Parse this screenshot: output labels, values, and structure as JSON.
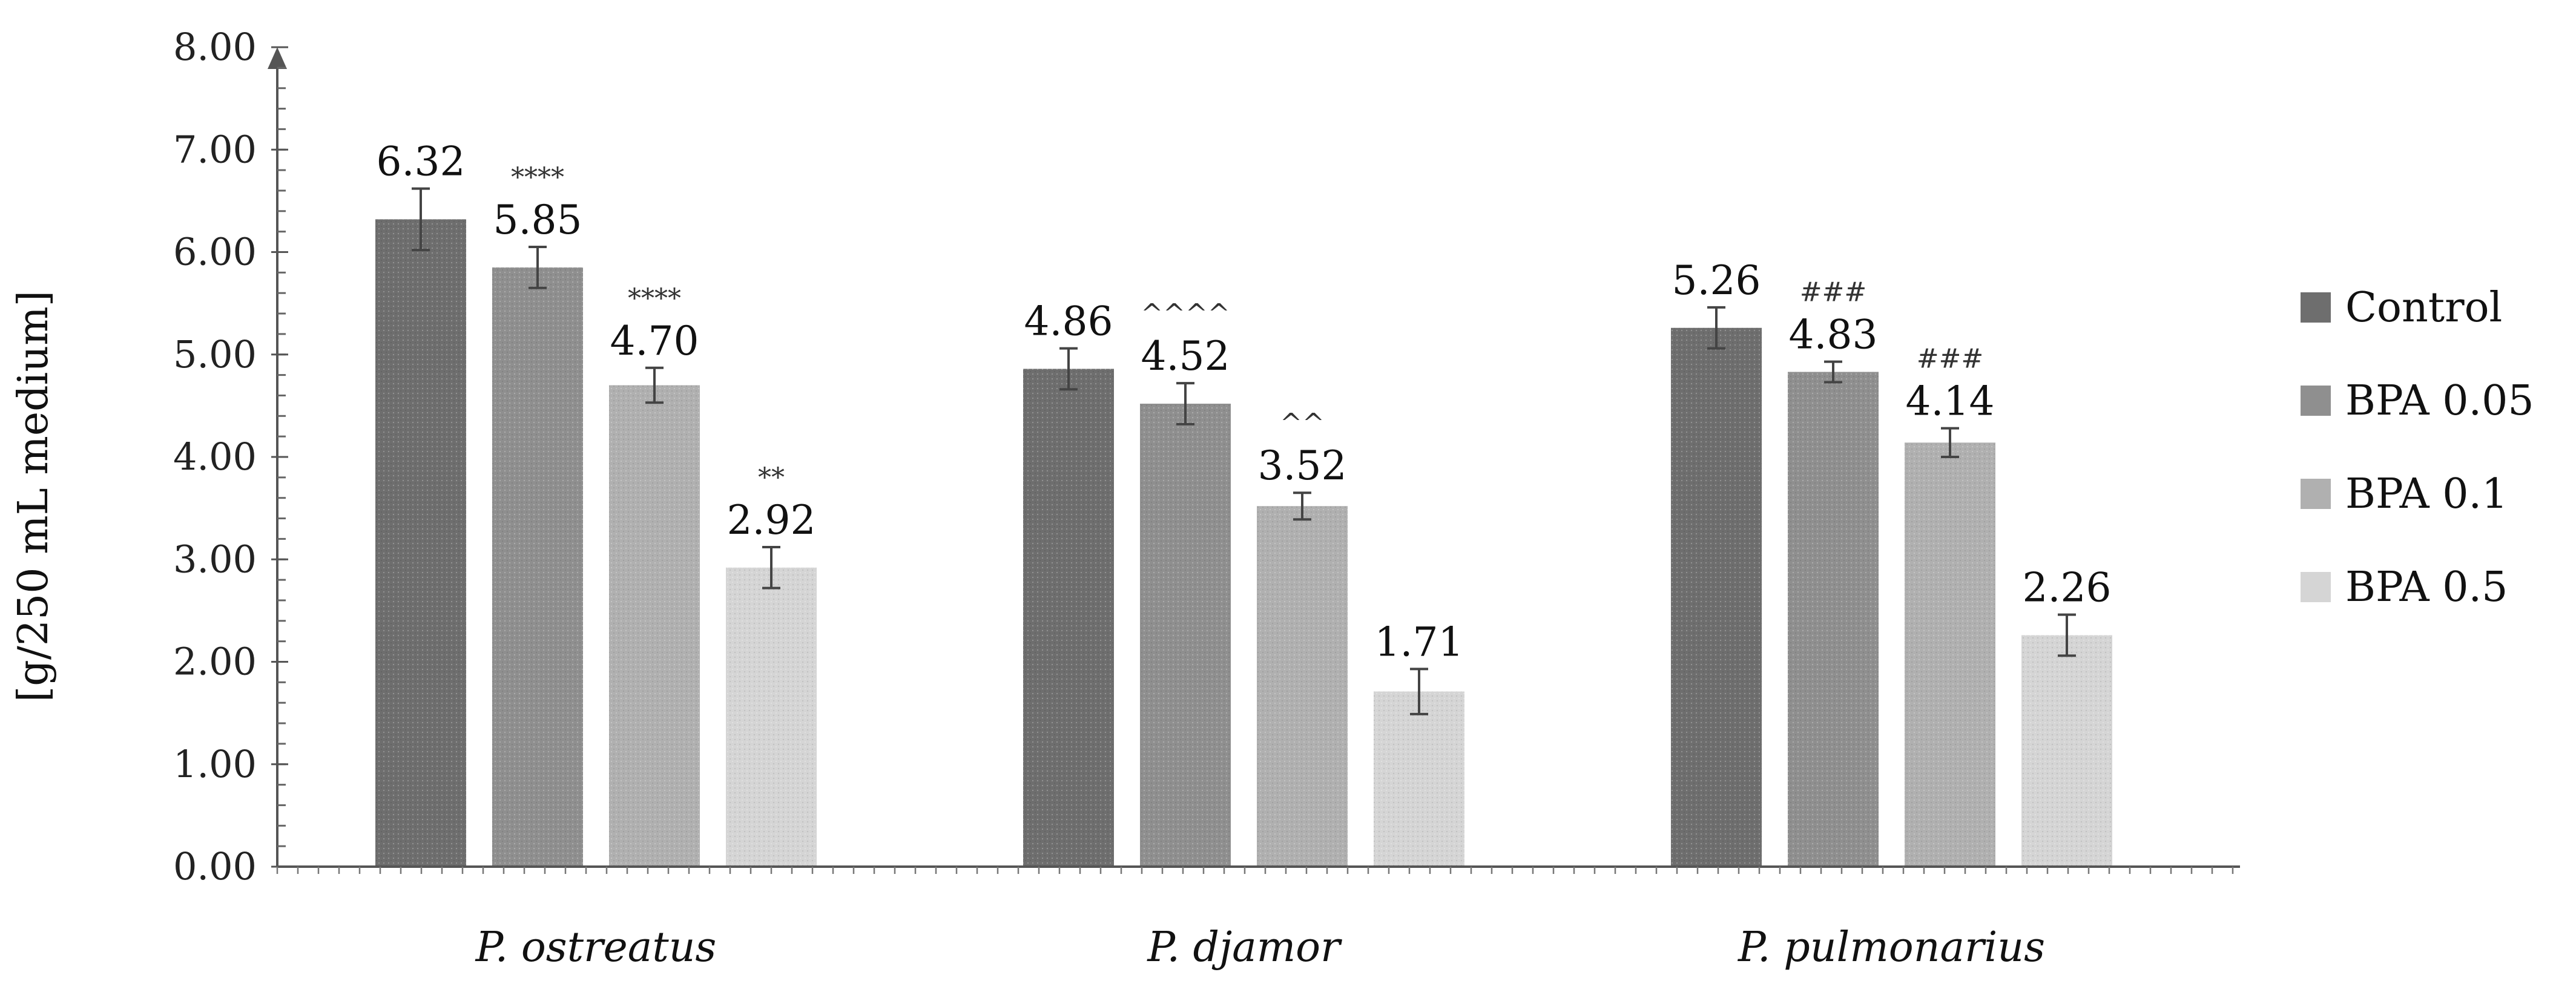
{
  "chart_data": {
    "type": "bar",
    "title": "",
    "xlabel": "",
    "ylabel": "[g/250 mL medium]",
    "ylim": [
      0,
      8
    ],
    "yticks": [
      "0.00",
      "1.00",
      "2.00",
      "3.00",
      "4.00",
      "5.00",
      "6.00",
      "7.00",
      "8.00"
    ],
    "categories": [
      "P. ostreatus",
      "P. djamor",
      "P. pulmonarius"
    ],
    "legend_position": "right",
    "grid": false,
    "series": [
      {
        "name": "Control",
        "color": "#6e6e6e",
        "values": [
          6.32,
          4.86,
          5.26
        ],
        "labels": [
          "6.32",
          "4.86",
          "5.26"
        ],
        "errors": [
          0.3,
          0.2,
          0.2
        ],
        "significance": [
          "",
          "",
          ""
        ]
      },
      {
        "name": "BPA 0.05",
        "color": "#8f8f8f",
        "values": [
          5.85,
          4.52,
          4.83
        ],
        "labels": [
          "5.85",
          "4.52",
          "4.83"
        ],
        "errors": [
          0.2,
          0.2,
          0.1
        ],
        "significance": [
          "****",
          "^^^^",
          "###"
        ]
      },
      {
        "name": "BPA 0.1",
        "color": "#b0b0b0",
        "values": [
          4.7,
          3.52,
          4.14
        ],
        "labels": [
          "4.70",
          "3.52",
          "4.14"
        ],
        "errors": [
          0.17,
          0.13,
          0.14
        ],
        "significance": [
          "****",
          "^^",
          "###"
        ]
      },
      {
        "name": "BPA 0.5",
        "color": "#d5d5d5",
        "values": [
          2.92,
          1.71,
          2.26
        ],
        "labels": [
          "2.92",
          "1.71",
          "2.26"
        ],
        "errors": [
          0.2,
          0.22,
          0.2
        ],
        "significance": [
          "**",
          "",
          ""
        ]
      }
    ]
  }
}
